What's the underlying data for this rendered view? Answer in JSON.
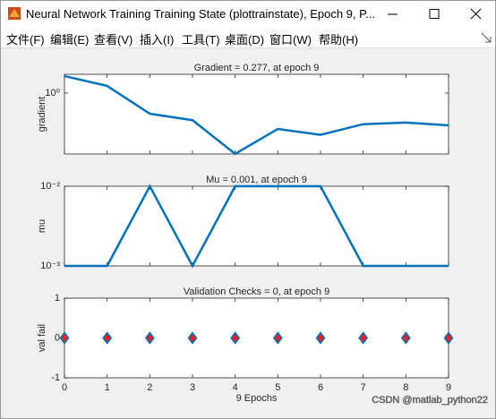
{
  "window": {
    "title": "Neural Network Training Training State (plottrainstate), Epoch 9, P...",
    "menu": [
      "文件(F)",
      "编辑(E)",
      "查看(V)",
      "插入(I)",
      "工具(T)",
      "桌面(D)",
      "窗口(W)",
      "帮助(H)"
    ]
  },
  "chart_data": [
    {
      "type": "line",
      "title": "Gradient = 0.277, at epoch 9",
      "ylabel": "gradient",
      "log_y": true,
      "color": "#0072bd",
      "x": [
        0,
        1,
        2,
        3,
        4,
        5,
        6,
        7,
        8,
        9
      ],
      "values": [
        1.97,
        1.33,
        0.44,
        0.34,
        0.089,
        0.24,
        0.19,
        0.29,
        0.31,
        0.277
      ],
      "xlim": [
        0,
        9
      ],
      "xticks": [
        0,
        1,
        2,
        3,
        4,
        5,
        6,
        7,
        8,
        9
      ],
      "ylim": [
        0.0886,
        2.11
      ],
      "yticks": [
        {
          "value": 1,
          "label": "10⁰"
        }
      ]
    },
    {
      "type": "line",
      "title": "Mu = 0.001, at epoch 9",
      "ylabel": "mu",
      "log_y": true,
      "color": "#0072bd",
      "x": [
        0,
        1,
        2,
        3,
        4,
        5,
        6,
        7,
        8,
        9
      ],
      "values": [
        0.001,
        0.001,
        0.01,
        0.001,
        0.01,
        0.01,
        0.01,
        0.001,
        0.001,
        0.001
      ],
      "xlim": [
        0,
        9
      ],
      "xticks": [
        0,
        1,
        2,
        3,
        4,
        5,
        6,
        7,
        8,
        9
      ],
      "ylim": [
        0.001,
        0.01
      ],
      "yticks": [
        {
          "value": 0.001,
          "label": "10⁻³"
        },
        {
          "value": 0.01,
          "label": "10⁻²"
        }
      ]
    },
    {
      "type": "scatter",
      "title": "Validation Checks = 0, at epoch 9",
      "ylabel": "val fail",
      "xlabel": "9 Epochs",
      "log_y": false,
      "marker": "diamond",
      "color": "#0072bd",
      "marker_face": "#e8211f",
      "x": [
        0,
        1,
        2,
        3,
        4,
        5,
        6,
        7,
        8,
        9
      ],
      "values": [
        0,
        0,
        0,
        0,
        0,
        0,
        0,
        0,
        0,
        0
      ],
      "xlim": [
        0,
        9
      ],
      "xticks": [
        0,
        1,
        2,
        3,
        4,
        5,
        6,
        7,
        8,
        9
      ],
      "ylim": [
        -1,
        1
      ],
      "yticks": [
        -1,
        0,
        1
      ]
    }
  ],
  "watermark": "CSDN @matlab_python22"
}
